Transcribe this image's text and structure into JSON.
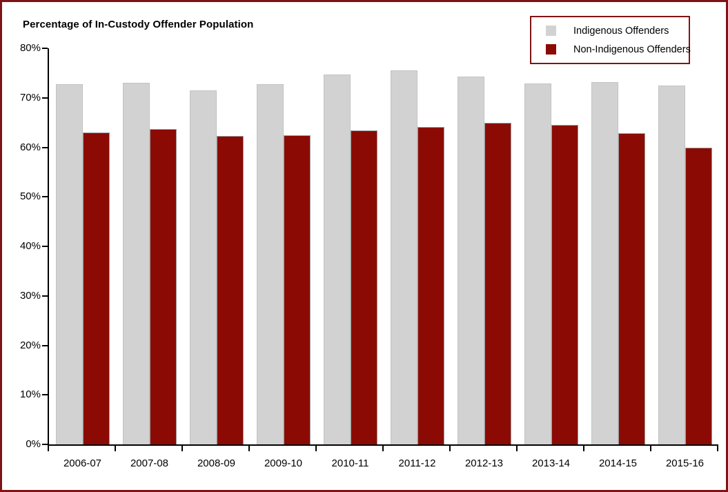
{
  "frame": {
    "background": "#FFFFFF",
    "border_color": "#7E1416"
  },
  "chart_data": {
    "type": "bar",
    "title": "Percentage of In-Custody Offender Population",
    "xlabel": "",
    "ylabel": "",
    "categories": [
      "2006-07",
      "2007-08",
      "2008-09",
      "2009-10",
      "2010-11",
      "2011-12",
      "2012-13",
      "2013-14",
      "2014-15",
      "2015-16"
    ],
    "series": [
      {
        "name": "Indigenous Offenders",
        "color": "#D2D2D2",
        "values": [
          72.7,
          73.0,
          71.5,
          72.7,
          74.7,
          75.6,
          74.3,
          72.9,
          73.2,
          72.5
        ]
      },
      {
        "name": "Non-Indigenous Offenders",
        "color": "#8B0B04",
        "values": [
          63.0,
          63.7,
          62.3,
          62.4,
          63.4,
          64.1,
          64.9,
          64.6,
          62.9,
          59.9
        ]
      }
    ],
    "ylim": [
      0,
      80
    ],
    "ytick_step": 10,
    "ytick_labels": [
      "0%",
      "10%",
      "20%",
      "30%",
      "40%",
      "50%",
      "60%",
      "70%",
      "80%"
    ],
    "grid": false,
    "legend_position": "top-right",
    "legend_border_color": "#7E1416",
    "axis_color": "#000000"
  }
}
